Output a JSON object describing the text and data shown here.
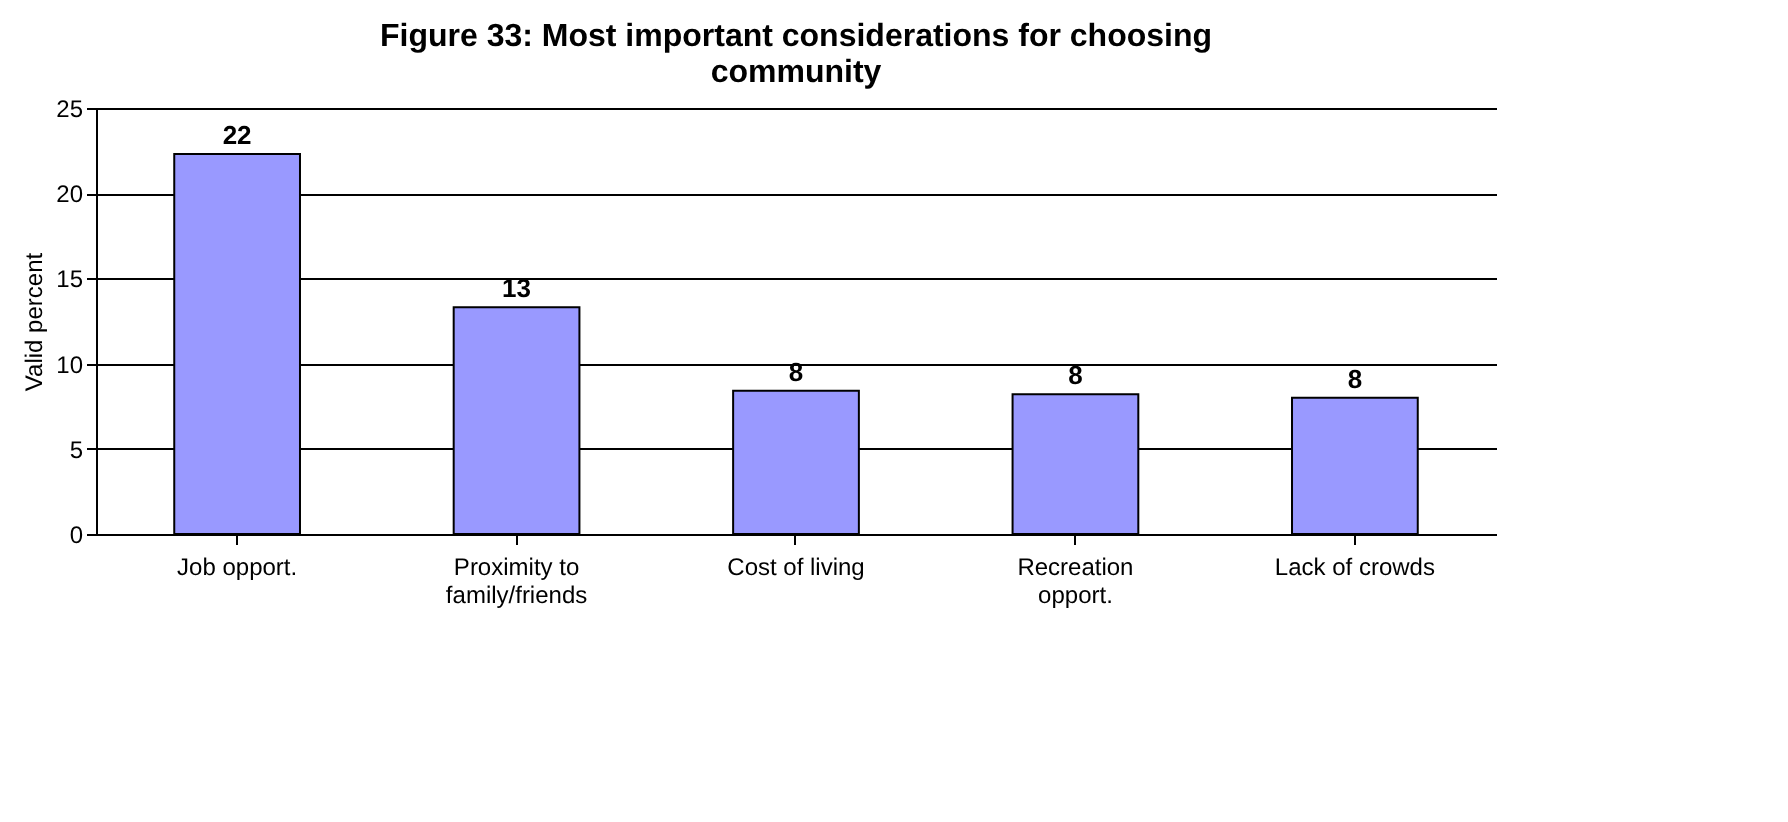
{
  "chart_data": {
    "type": "bar",
    "title": "Figure 33: Most important considerations for choosing community",
    "ylabel": "Valid percent",
    "categories": [
      "Job opport.",
      "Proximity to family/friends",
      "Cost of living",
      "Recreation opport.",
      "Lack of crowds"
    ],
    "values": [
      22.3,
      13.3,
      8.4,
      8.2,
      8.0
    ],
    "value_labels": [
      "22",
      "13",
      "8",
      "8",
      "8"
    ],
    "color": "#9999ff",
    "ylim": [
      0,
      25
    ],
    "yticks": [
      0,
      5,
      10,
      15,
      20,
      25
    ],
    "grid": "y"
  }
}
